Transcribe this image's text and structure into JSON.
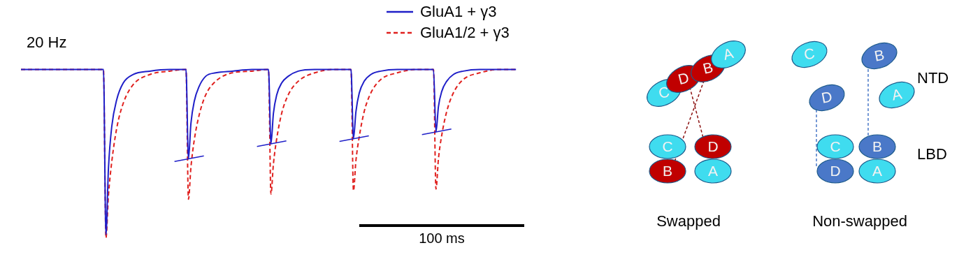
{
  "chart_data": {
    "type": "line",
    "title": "20 Hz",
    "x": [
      -50,
      0,
      1.5,
      3,
      5,
      8,
      12,
      18,
      28,
      40,
      50,
      51.5,
      53,
      55,
      58,
      62,
      68,
      78,
      90,
      100,
      101.5,
      103,
      105,
      108,
      112,
      118,
      128,
      140,
      150,
      151.5,
      153,
      155,
      158,
      162,
      168,
      178,
      190,
      200,
      201.5,
      203,
      205,
      208,
      212,
      218,
      228,
      240,
      250
    ],
    "series": [
      {
        "name": "GluA1 + γ3",
        "color": "#1f1fc8",
        "line_style": "solid",
        "values": [
          0,
          0,
          -0.98,
          -0.59,
          -0.34,
          -0.18,
          -0.08,
          -0.03,
          -0.01,
          0,
          0,
          -0.53,
          -0.32,
          -0.19,
          -0.1,
          -0.04,
          -0.02,
          -0.01,
          0,
          0,
          -0.44,
          -0.26,
          -0.15,
          -0.08,
          -0.04,
          -0.01,
          0,
          0,
          0,
          -0.41,
          -0.25,
          -0.14,
          -0.07,
          -0.03,
          -0.01,
          0,
          0,
          0,
          -0.37,
          -0.22,
          -0.13,
          -0.07,
          -0.03,
          -0.01,
          0,
          0,
          0
        ]
      },
      {
        "name": "GluA1/2 + γ3",
        "color": "#e0201e",
        "line_style": "dashed",
        "values": [
          0,
          0,
          -1,
          -0.75,
          -0.55,
          -0.35,
          -0.2,
          -0.09,
          -0.03,
          -0.01,
          0,
          -0.77,
          -0.58,
          -0.42,
          -0.27,
          -0.15,
          -0.07,
          -0.02,
          -0.01,
          0,
          -0.74,
          -0.56,
          -0.41,
          -0.26,
          -0.15,
          -0.07,
          -0.02,
          0,
          0,
          -0.72,
          -0.54,
          -0.4,
          -0.25,
          -0.14,
          -0.06,
          -0.02,
          0,
          0,
          -0.71,
          -0.53,
          -0.39,
          -0.25,
          -0.14,
          -0.06,
          -0.02,
          0,
          0
        ]
      }
    ],
    "xlim": [
      -50,
      255
    ],
    "ylim": [
      -1.03,
      0.06
    ],
    "tick_labels": false,
    "grid": false,
    "legend": "top right",
    "scale_bar": {
      "length": 100,
      "label": "100 ms"
    }
  },
  "diagram": {
    "row_labels": [
      "NTD",
      "LBD"
    ],
    "panels": [
      {
        "title": "Swapped",
        "ntd": [
          {
            "label": "C",
            "color": "#3fdcef"
          },
          {
            "label": "D",
            "color": "#c00000"
          },
          {
            "label": "B",
            "color": "#c00000"
          },
          {
            "label": "A",
            "color": "#3fdcef"
          }
        ],
        "lbd": [
          {
            "label": "C",
            "color": "#3fdcef"
          },
          {
            "label": "D",
            "color": "#c00000"
          },
          {
            "label": "B",
            "color": "#c00000"
          },
          {
            "label": "A",
            "color": "#3fdcef"
          }
        ]
      },
      {
        "title": "Non-swapped",
        "ntd": [
          {
            "label": "C",
            "color": "#3fdcef"
          },
          {
            "label": "D",
            "color": "#4a78c8"
          },
          {
            "label": "B",
            "color": "#4a78c8"
          },
          {
            "label": "A",
            "color": "#3fdcef"
          }
        ],
        "lbd": [
          {
            "label": "C",
            "color": "#3fdcef"
          },
          {
            "label": "B",
            "color": "#4a78c8"
          },
          {
            "label": "D",
            "color": "#4a78c8"
          },
          {
            "label": "A",
            "color": "#3fdcef"
          }
        ]
      }
    ]
  }
}
